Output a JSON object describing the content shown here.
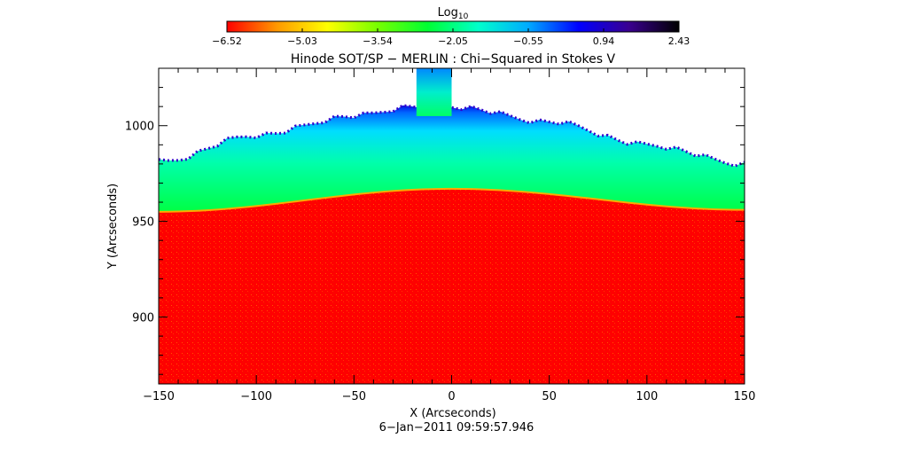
{
  "chart_data": {
    "type": "heatmap",
    "title": "Hinode SOT/SP − MERLIN : Chi−Squared in Stokes V",
    "colorbar": {
      "label_base": "Log",
      "label_sub": "10",
      "ticks": [
        "−6.52",
        "−5.03",
        "−3.54",
        "−2.05",
        "−0.55",
        "0.94",
        "2.43"
      ],
      "range": [
        -6.52,
        2.43
      ],
      "colormap": [
        "#ff0000",
        "#ff9900",
        "#ffff00",
        "#77ff00",
        "#00ff33",
        "#00ffcc",
        "#00aaff",
        "#0000ff",
        "#3a0090",
        "#000000"
      ]
    },
    "xlabel": "X (Arcseconds)",
    "ylabel": "Y (Arcseconds)",
    "xlim": [
      -150,
      150
    ],
    "ylim": [
      865,
      1030
    ],
    "xticks": [
      -150,
      -100,
      -50,
      0,
      50,
      100,
      150
    ],
    "xtick_labels": [
      "−150",
      "−100",
      "−50",
      "0",
      "50",
      "100",
      "150"
    ],
    "yticks": [
      900,
      950,
      1000
    ],
    "ytick_labels": [
      "900",
      "950",
      "1000"
    ],
    "limb_edge": {
      "x": [
        -150,
        0,
        150
      ],
      "y": [
        955,
        967,
        956
      ]
    },
    "data_top_edge": {
      "x": [
        -150,
        -100,
        -50,
        -20,
        0,
        50,
        100,
        150
      ],
      "y": [
        981,
        995,
        1005,
        1010,
        1010,
        1002,
        990,
        980
      ]
    },
    "plume": {
      "x_range": [
        -18,
        0
      ],
      "y_top": 1030
    },
    "timestamp": "6−Jan−2011 09:59:57.946"
  }
}
